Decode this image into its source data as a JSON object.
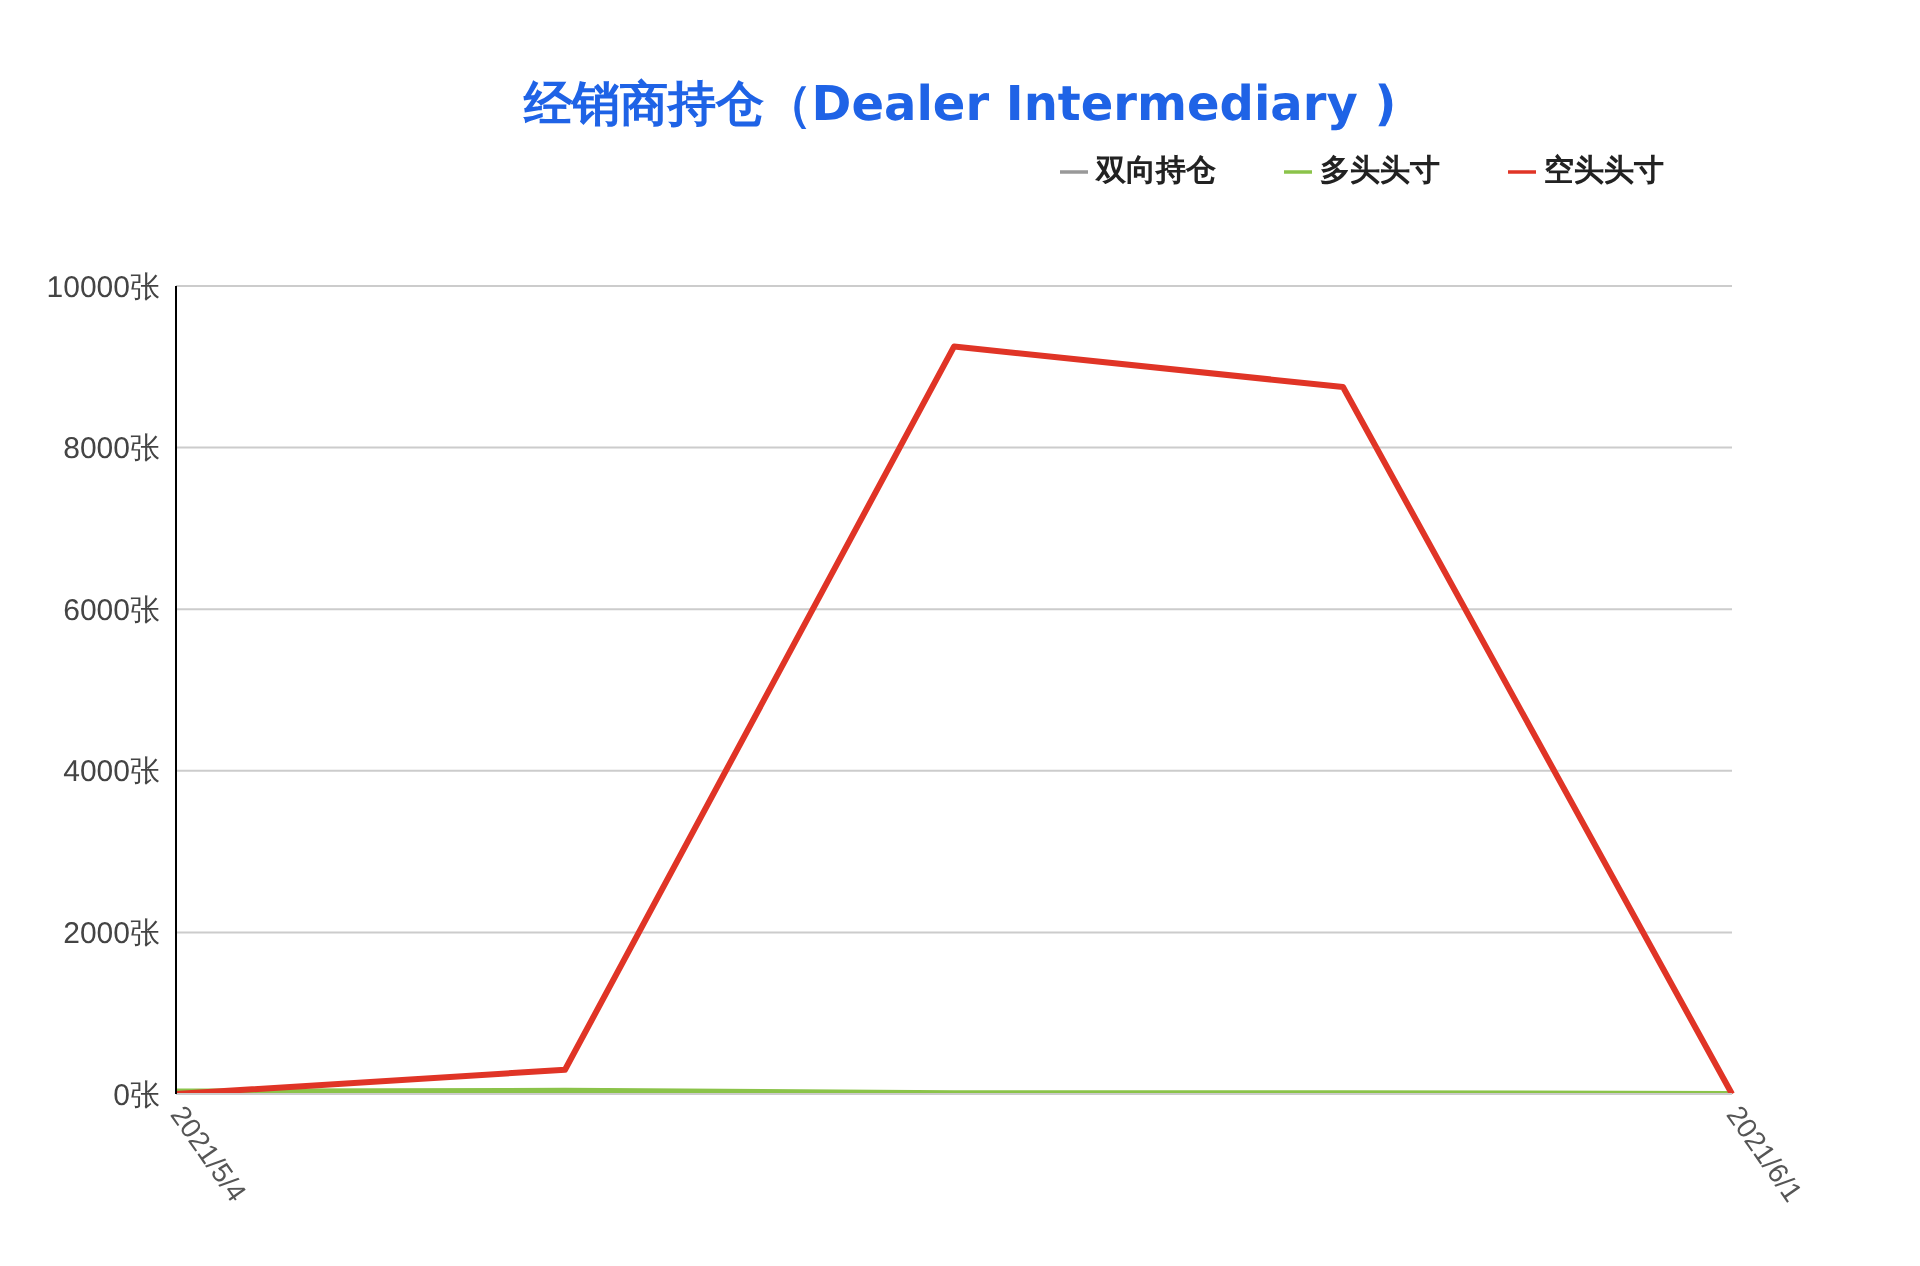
{
  "chart_data": {
    "type": "line",
    "title": "经销商持仓（Dealer Intermediary )",
    "categories": [
      "2021/5/4",
      null,
      null,
      null,
      "2021/6/1"
    ],
    "series": [
      {
        "name": "多头头寸",
        "color": "#8bc34a",
        "values": [
          30,
          40,
          10,
          10,
          0
        ]
      },
      {
        "name": "空头头寸",
        "color": "#e03426",
        "values": [
          0,
          300,
          9250,
          8750,
          0
        ]
      },
      {
        "name": "双向持仓",
        "color": "#999999",
        "values": [
          null,
          null,
          null,
          null,
          null
        ]
      }
    ],
    "ylim": [
      0,
      10000
    ],
    "yticks": [
      {
        "value": 0,
        "label": "0张"
      },
      {
        "value": 2000,
        "label": "2000张"
      },
      {
        "value": 4000,
        "label": "4000张"
      },
      {
        "value": 6000,
        "label": "6000张"
      },
      {
        "value": 8000,
        "label": "8000张"
      },
      {
        "value": 10000,
        "label": "10000张"
      }
    ],
    "grid": "y",
    "legend": "top right",
    "marker": "none",
    "line_style": "solid"
  }
}
